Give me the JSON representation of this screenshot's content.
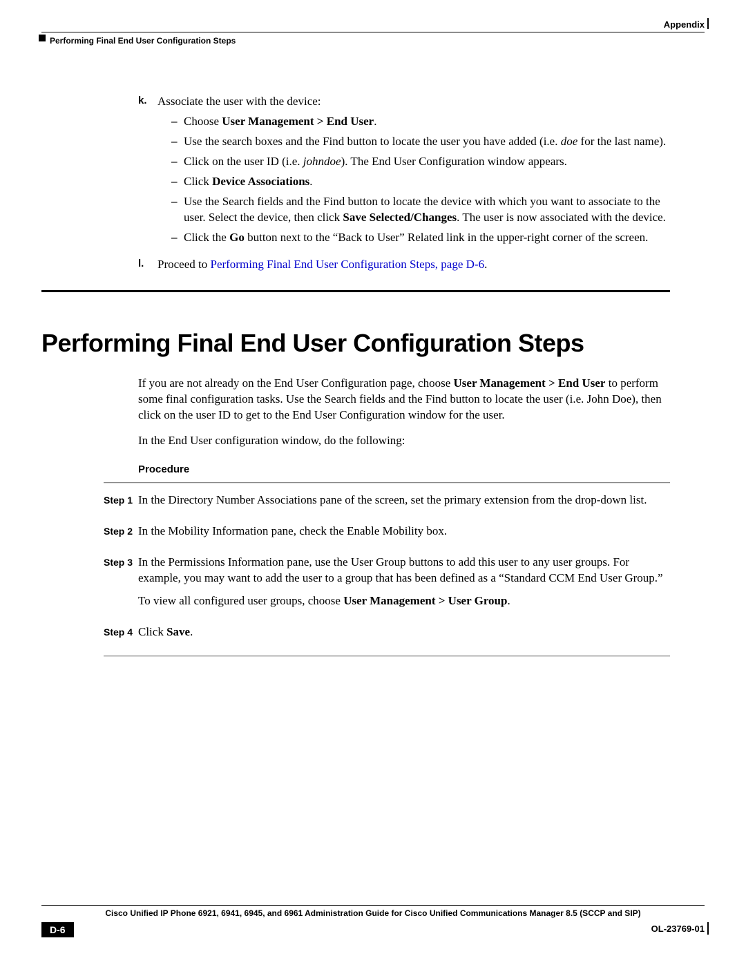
{
  "header": {
    "appendix": "Appendix",
    "subtitle": "Performing Final End User Configuration Steps"
  },
  "stepK": {
    "marker": "k.",
    "intro": "Associate the user with the device:",
    "b1_pre": "Choose ",
    "b1_bold": "User Management > End User",
    "b1_post": ".",
    "b2_pre": "Use the search boxes and the Find button to locate the user you have added (i.e. ",
    "b2_italic": "doe",
    "b2_post": " for the last name).",
    "b3_pre": "Click on the user ID (i.e. ",
    "b3_italic": "johndoe",
    "b3_post": "). The End User Configuration window appears.",
    "b4_pre": "Click ",
    "b4_bold": "Device Associations",
    "b4_post": ".",
    "b5_pre": "Use the Search fields and the Find button to locate the device with which you want to associate to the user. Select the device, then click ",
    "b5_bold": "Save Selected/Changes",
    "b5_post": ". The user is now associated with the device.",
    "b6_pre": "Click the ",
    "b6_bold": "Go",
    "b6_post": " button next to the “Back to User” Related link in the upper-right corner of the screen."
  },
  "stepL": {
    "marker": "l.",
    "pre": "Proceed to ",
    "link": "Performing Final End User Configuration Steps, page D-6",
    "post": "."
  },
  "h1": "Performing Final End User Configuration Steps",
  "intro1_pre": "If you are not already on the End User Configuration page, choose ",
  "intro1_bold": "User Management > End User",
  "intro1_post": " to perform some final configuration tasks. Use the Search fields and the Find button to locate the user (i.e. John Doe), then click on the user ID to get to the End User Configuration window for the user.",
  "intro2": "In the End User configuration window, do the following:",
  "procLabel": "Procedure",
  "steps": {
    "s1_label": "Step 1",
    "s1_text": "In the Directory Number Associations pane of the screen, set the primary extension from the drop-down list.",
    "s2_label": "Step 2",
    "s2_text": "In the Mobility Information pane, check the Enable Mobility box.",
    "s3_label": "Step 3",
    "s3_p1": "In the Permissions Information pane, use the User Group buttons to add this user to any user groups. For example, you may want to add the user to a group that has been defined as a “Standard CCM End User Group.”",
    "s3_p2_pre": "To view all configured user groups, choose ",
    "s3_p2_bold": "User Management > User Group",
    "s3_p2_post": ".",
    "s4_label": "Step 4",
    "s4_pre": "Click ",
    "s4_bold": "Save",
    "s4_post": "."
  },
  "footer": {
    "title": "Cisco Unified IP Phone 6921, 6941, 6945, and 6961 Administration Guide for Cisco Unified Communications Manager 8.5 (SCCP and SIP)",
    "page": "D-6",
    "docid": "OL-23769-01"
  }
}
